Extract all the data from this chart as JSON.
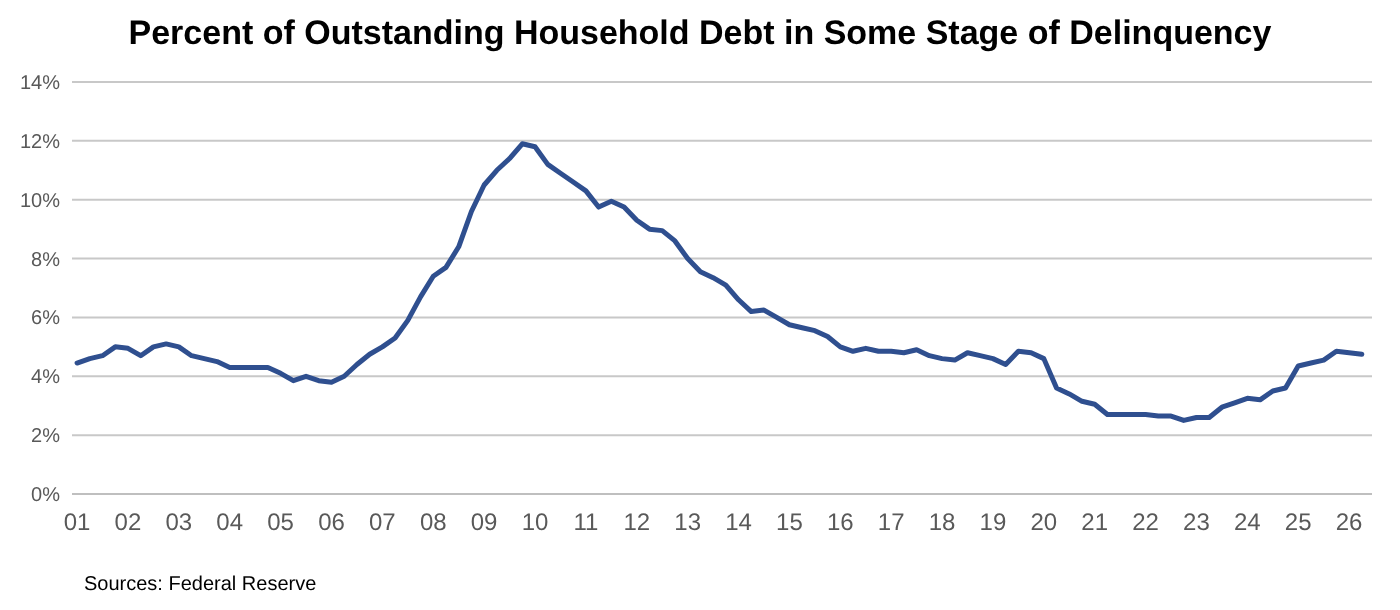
{
  "chart_data": {
    "type": "line",
    "title": "Percent of Outstanding Household Debt in Some Stage of Delinquency",
    "x": [
      2001,
      2001.25,
      2001.5,
      2001.75,
      2002,
      2002.25,
      2002.5,
      2002.75,
      2003,
      2003.25,
      2003.5,
      2003.75,
      2004,
      2004.25,
      2004.5,
      2004.75,
      2005,
      2005.25,
      2005.5,
      2005.75,
      2006,
      2006.25,
      2006.5,
      2006.75,
      2007,
      2007.25,
      2007.5,
      2007.75,
      2008,
      2008.25,
      2008.5,
      2008.75,
      2009,
      2009.25,
      2009.5,
      2009.75,
      2010,
      2010.25,
      2010.5,
      2010.75,
      2011,
      2011.25,
      2011.5,
      2011.75,
      2012,
      2012.25,
      2012.5,
      2012.75,
      2013,
      2013.25,
      2013.5,
      2013.75,
      2014,
      2014.25,
      2014.5,
      2014.75,
      2015,
      2015.25,
      2015.5,
      2015.75,
      2016,
      2016.25,
      2016.5,
      2016.75,
      2017,
      2017.25,
      2017.5,
      2017.75,
      2018,
      2018.25,
      2018.5,
      2018.75,
      2019,
      2019.25,
      2019.5,
      2019.75,
      2020,
      2020.25,
      2020.5,
      2020.75,
      2021,
      2021.25,
      2021.5,
      2021.75,
      2022,
      2022.25,
      2022.5,
      2022.75,
      2023,
      2023.25,
      2023.5,
      2023.75,
      2024,
      2024.25,
      2024.5,
      2024.75,
      2025,
      2025.25,
      2025.5,
      2025.75,
      2026,
      2026.25
    ],
    "series": [
      {
        "color": "#2f4f8f",
        "values": [
          4.45,
          4.6,
          4.7,
          5.0,
          4.95,
          4.7,
          5.0,
          5.1,
          5.0,
          4.7,
          4.6,
          4.5,
          4.3,
          4.3,
          4.3,
          4.3,
          4.1,
          3.85,
          4.0,
          3.85,
          3.8,
          4.0,
          4.4,
          4.75,
          5.0,
          5.3,
          5.9,
          6.7,
          7.4,
          7.7,
          8.4,
          9.6,
          10.5,
          11.0,
          11.4,
          11.9,
          11.8,
          11.2,
          10.9,
          10.6,
          10.3,
          9.75,
          9.95,
          9.75,
          9.3,
          9.0,
          8.95,
          8.6,
          8.0,
          7.55,
          7.35,
          7.1,
          6.6,
          6.2,
          6.25,
          6.0,
          5.75,
          5.65,
          5.55,
          5.35,
          5.0,
          4.85,
          4.95,
          4.85,
          4.85,
          4.8,
          4.9,
          4.7,
          4.6,
          4.55,
          4.8,
          4.7,
          4.6,
          4.4,
          4.85,
          4.8,
          4.6,
          3.6,
          3.4,
          3.15,
          3.05,
          2.7,
          2.7,
          2.7,
          2.7,
          2.65,
          2.65,
          2.5,
          2.6,
          2.6,
          2.95,
          3.1,
          3.25,
          3.2,
          3.5,
          3.6,
          4.35,
          4.45,
          4.55,
          4.85,
          4.8,
          4.75
        ]
      }
    ],
    "xlim": [
      2000.9,
      2026.45
    ],
    "xticks": [
      {
        "value": 2001,
        "label": "01"
      },
      {
        "value": 2002,
        "label": "02"
      },
      {
        "value": 2003,
        "label": "03"
      },
      {
        "value": 2004,
        "label": "04"
      },
      {
        "value": 2005,
        "label": "05"
      },
      {
        "value": 2006,
        "label": "06"
      },
      {
        "value": 2007,
        "label": "07"
      },
      {
        "value": 2008,
        "label": "08"
      },
      {
        "value": 2009,
        "label": "09"
      },
      {
        "value": 2010,
        "label": "10"
      },
      {
        "value": 2011,
        "label": "11"
      },
      {
        "value": 2012,
        "label": "12"
      },
      {
        "value": 2013,
        "label": "13"
      },
      {
        "value": 2014,
        "label": "14"
      },
      {
        "value": 2015,
        "label": "15"
      },
      {
        "value": 2016,
        "label": "16"
      },
      {
        "value": 2017,
        "label": "17"
      },
      {
        "value": 2018,
        "label": "18"
      },
      {
        "value": 2019,
        "label": "19"
      },
      {
        "value": 2020,
        "label": "20"
      },
      {
        "value": 2021,
        "label": "21"
      },
      {
        "value": 2022,
        "label": "22"
      },
      {
        "value": 2023,
        "label": "23"
      },
      {
        "value": 2024,
        "label": "24"
      },
      {
        "value": 2025,
        "label": "25"
      },
      {
        "value": 2026,
        "label": "26"
      }
    ],
    "ylim": [
      0,
      14
    ],
    "yticks": [
      {
        "value": 0,
        "label": "0%"
      },
      {
        "value": 2,
        "label": "2%"
      },
      {
        "value": 4,
        "label": "4%"
      },
      {
        "value": 6,
        "label": "6%"
      },
      {
        "value": 8,
        "label": "8%"
      },
      {
        "value": 10,
        "label": "10%"
      },
      {
        "value": 12,
        "label": "12%"
      },
      {
        "value": 14,
        "label": "14%"
      }
    ],
    "grid": "y",
    "marker": "none",
    "line_style": "solid",
    "annotations": [
      "Sources: Federal Reserve"
    ]
  }
}
